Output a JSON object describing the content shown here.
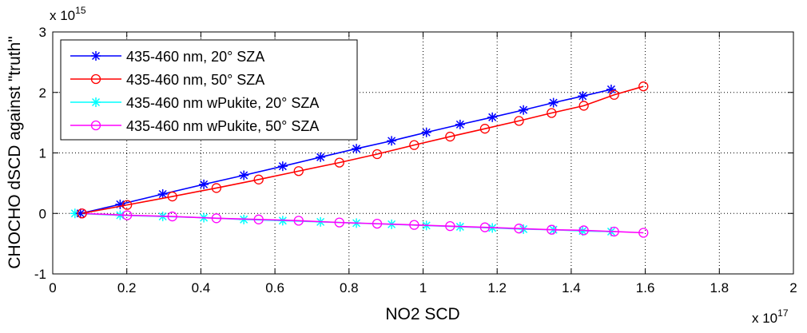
{
  "chart_data": {
    "type": "line",
    "title": "",
    "xlabel": "NO2 SCD",
    "ylabel": "CHOCHO dSCD against \"truth\"",
    "x_exponent_label": "x 10",
    "x_exponent": "17",
    "y_exponent_label": "x 10",
    "y_exponent": "15",
    "xlim": [
      0,
      2
    ],
    "ylim": [
      -1,
      3
    ],
    "xticks": [
      "0",
      "0.2",
      "0.4",
      "0.6",
      "0.8",
      "1",
      "1.2",
      "1.4",
      "1.6",
      "1.8",
      "2"
    ],
    "xtick_values": [
      0,
      0.2,
      0.4,
      0.6,
      0.8,
      1.0,
      1.2,
      1.4,
      1.6,
      1.8,
      2.0
    ],
    "yticks": [
      "-1",
      "0",
      "1",
      "2",
      "3"
    ],
    "ytick_values": [
      -1,
      0,
      1,
      2,
      3
    ],
    "grid": true,
    "legend_position": "top-left",
    "series": [
      {
        "name": "435-460 nm, 20° SZA",
        "color": "#0000ff",
        "marker": "star",
        "x": [
          0.075,
          0.182,
          0.297,
          0.408,
          0.516,
          0.621,
          0.723,
          0.82,
          0.915,
          1.009,
          1.1,
          1.187,
          1.271,
          1.352,
          1.431,
          1.508
        ],
        "y": [
          0,
          0.15,
          0.32,
          0.48,
          0.63,
          0.78,
          0.93,
          1.07,
          1.2,
          1.34,
          1.47,
          1.59,
          1.71,
          1.83,
          1.94,
          2.05
        ]
      },
      {
        "name": "435-460 nm, 50° SZA",
        "color": "#ff0000",
        "marker": "circle",
        "x": [
          0.079,
          0.201,
          0.323,
          0.442,
          0.556,
          0.664,
          0.774,
          0.876,
          0.976,
          1.073,
          1.167,
          1.259,
          1.347,
          1.434,
          1.516,
          1.595
        ],
        "y": [
          0,
          0.14,
          0.28,
          0.42,
          0.56,
          0.7,
          0.84,
          0.98,
          1.13,
          1.27,
          1.4,
          1.53,
          1.66,
          1.78,
          1.96,
          2.1
        ]
      },
      {
        "name": "435-460 nm wPukite, 20° SZA",
        "color": "#00ffff",
        "marker": "star",
        "x": [
          0.06,
          0.182,
          0.297,
          0.408,
          0.516,
          0.621,
          0.723,
          0.82,
          0.915,
          1.009,
          1.1,
          1.187,
          1.271,
          1.352,
          1.431,
          1.508
        ],
        "y": [
          0,
          -0.03,
          -0.05,
          -0.07,
          -0.1,
          -0.12,
          -0.14,
          -0.16,
          -0.18,
          -0.2,
          -0.22,
          -0.24,
          -0.26,
          -0.27,
          -0.29,
          -0.3
        ]
      },
      {
        "name": "435-460 nm wPukite, 50° SZA",
        "color": "#ff00ff",
        "marker": "circle",
        "x": [
          0.079,
          0.201,
          0.323,
          0.442,
          0.556,
          0.664,
          0.774,
          0.876,
          0.976,
          1.073,
          1.167,
          1.259,
          1.347,
          1.434,
          1.516,
          1.595
        ],
        "y": [
          0,
          -0.03,
          -0.05,
          -0.08,
          -0.1,
          -0.12,
          -0.15,
          -0.17,
          -0.19,
          -0.21,
          -0.23,
          -0.25,
          -0.27,
          -0.28,
          -0.3,
          -0.32
        ]
      }
    ]
  }
}
